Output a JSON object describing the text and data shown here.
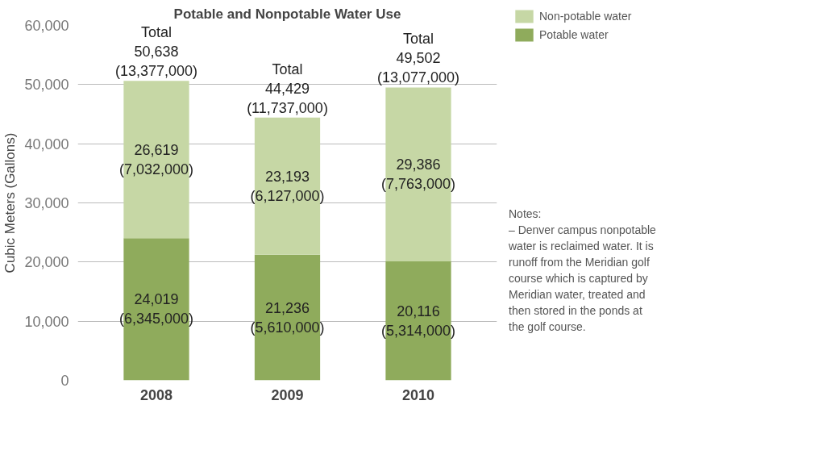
{
  "chart_data": {
    "type": "bar",
    "title": "Potable and Nonpotable Water Use",
    "ylabel": "Cubic Meters (Gallons)",
    "categories": [
      "2008",
      "2009",
      "2010"
    ],
    "stacked": true,
    "series": [
      {
        "name": "Potable water",
        "color": "#8fab5c",
        "values": [
          24019,
          21236,
          20116
        ],
        "value_labels": [
          "24,019\n(6,345,000)",
          "21,236\n(5,610,000)",
          "20,116\n(5,314,000)"
        ]
      },
      {
        "name": "Non-potable water",
        "color": "#c6d7a5",
        "values": [
          26619,
          23193,
          29386
        ],
        "value_labels": [
          "26,619\n(7,032,000)",
          "23,193\n(6,127,000)",
          "29,386\n(7,763,000)"
        ]
      }
    ],
    "totals": [
      "Total\n50,638\n(13,377,000)",
      "Total\n44,429\n(11,737,000)",
      "Total\n49,502\n(13,077,000)"
    ],
    "ylim": [
      0,
      60000
    ],
    "yticks": [
      {
        "value": 0,
        "label": "0"
      },
      {
        "value": 10000,
        "label": "10,000"
      },
      {
        "value": 20000,
        "label": "20,000"
      },
      {
        "value": 30000,
        "label": "30,000"
      },
      {
        "value": 40000,
        "label": "40,000"
      },
      {
        "value": 50000,
        "label": "50,000"
      },
      {
        "value": 60000,
        "label": "60,000"
      }
    ],
    "grid": "y",
    "legend": "right",
    "annotations": [
      "Notes:\n– Denver campus nonpotable water is reclaimed water. It is runoff from the Meridian golf course which is captured by Meridian water, treated and then stored in the ponds at the golf course."
    ]
  }
}
